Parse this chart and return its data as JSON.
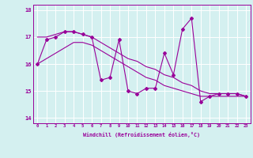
{
  "title": "",
  "xlabel": "Windchill (Refroidissement éolien,°C)",
  "x_hours": [
    0,
    1,
    2,
    3,
    4,
    5,
    6,
    7,
    8,
    9,
    10,
    11,
    12,
    13,
    14,
    15,
    16,
    17,
    18,
    19,
    20,
    21,
    22,
    23
  ],
  "x_tick_labels": [
    "0",
    "1",
    "2",
    "3",
    "4",
    "5",
    "6",
    "7",
    "8",
    "9",
    "10",
    "11",
    "12",
    "13",
    "14",
    "15",
    "16",
    "17",
    "18",
    "19",
    "20",
    "21",
    "22",
    "23"
  ],
  "main_line_y": [
    16.0,
    16.9,
    17.0,
    17.2,
    17.2,
    17.1,
    17.0,
    15.4,
    15.5,
    16.9,
    15.0,
    14.9,
    15.1,
    15.1,
    16.4,
    15.6,
    17.3,
    17.7,
    14.6,
    14.8,
    14.9,
    14.9,
    14.9,
    14.8
  ],
  "line1_y": [
    17.0,
    17.0,
    17.1,
    17.2,
    17.2,
    17.1,
    17.0,
    16.8,
    16.6,
    16.4,
    16.2,
    16.1,
    15.9,
    15.8,
    15.6,
    15.5,
    15.3,
    15.2,
    15.0,
    14.9,
    14.9,
    14.9,
    14.9,
    14.8
  ],
  "line2_y": [
    16.0,
    16.2,
    16.4,
    16.6,
    16.8,
    16.8,
    16.7,
    16.5,
    16.3,
    16.1,
    15.9,
    15.7,
    15.5,
    15.4,
    15.2,
    15.1,
    15.0,
    14.9,
    14.8,
    14.8,
    14.8,
    14.8,
    14.8,
    14.8
  ],
  "line_color": "#990099",
  "bg_color": "#d4f0f0",
  "grid_color": "#ffffff",
  "ylim": [
    13.8,
    18.2
  ],
  "xlim": [
    -0.5,
    23.5
  ],
  "yticks": [
    14,
    15,
    16,
    17,
    18
  ],
  "marker": "D",
  "marker_size": 2.0,
  "line_width": 0.8
}
